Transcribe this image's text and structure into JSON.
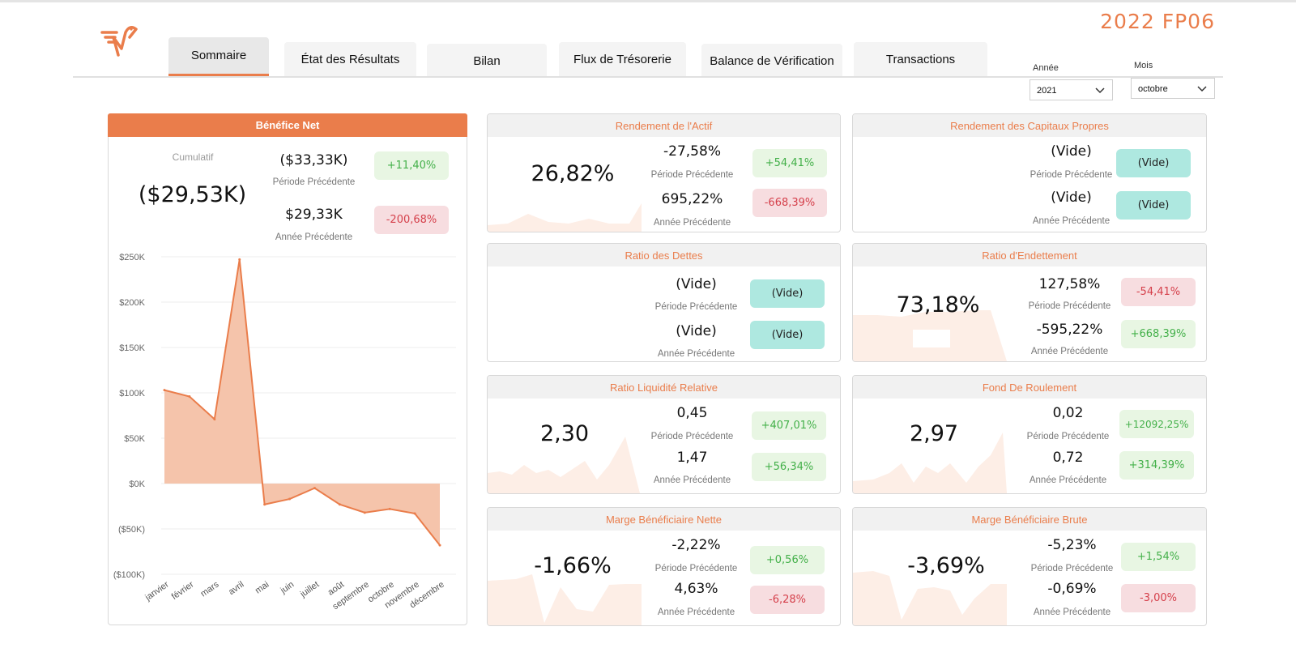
{
  "header": {
    "title": "2022 FP06",
    "tabs": [
      {
        "label": "Sommaire"
      },
      {
        "label": "État des Résultats"
      },
      {
        "label": "Bilan"
      },
      {
        "label": "Flux de Trésorerie"
      },
      {
        "label": "Balance de Vérification"
      },
      {
        "label": "Transactions"
      }
    ],
    "filters": {
      "year_label": "Année",
      "year_value": "2021",
      "month_label": "Mois",
      "month_value": "octobre"
    }
  },
  "net_profit": {
    "title": "Bénéfice Net",
    "cumulative_label": "Cumulatif",
    "value": "($29,53K)",
    "prev_period_value": "($33,33K)",
    "prev_period_label": "Période Précédente",
    "prev_period_change": "+11,40%",
    "prev_year_value": "$29,33K",
    "prev_year_label": "Année Précédente",
    "prev_year_change": "-200,68%"
  },
  "chart_data": {
    "type": "area",
    "title": "",
    "xlabel": "",
    "ylabel": "",
    "categories": [
      "janvier",
      "février",
      "mars",
      "avril",
      "mai",
      "juin",
      "juillet",
      "août",
      "septembre",
      "octobre",
      "novembre",
      "décembre"
    ],
    "values": [
      103,
      96,
      71,
      247,
      -23,
      -17,
      -5,
      -23,
      -32,
      -28,
      -33,
      -68
    ],
    "ylim": [
      -100,
      250
    ],
    "yticks": [
      {
        "value": 250,
        "label": "$250K"
      },
      {
        "value": 200,
        "label": "$200K"
      },
      {
        "value": 150,
        "label": "$150K"
      },
      {
        "value": 100,
        "label": "$100K"
      },
      {
        "value": 50,
        "label": "$50K"
      },
      {
        "value": 0,
        "label": "$0K"
      },
      {
        "value": -50,
        "label": "($50K)"
      },
      {
        "value": -100,
        "label": "($100K)"
      }
    ],
    "grid": true,
    "color": "#ea7d4b",
    "fill_color": "#f5c4ab"
  },
  "kpis": {
    "roa": {
      "title": "Rendement de l'Actif",
      "value": "26,82%",
      "prev_value": "-27,58%",
      "prev_label": "Période Précédente",
      "prev_change": "+54,41%",
      "year_value": "695,22%",
      "year_label": "Année Précédente",
      "year_change": "-668,39%"
    },
    "roe": {
      "title": "Rendement des Capitaux Propres",
      "value": "",
      "prev_value": "(Vide)",
      "prev_label": "Période Précédente",
      "prev_change": "(Vide)",
      "year_value": "(Vide)",
      "year_label": "Année Précédente",
      "year_change": "(Vide)"
    },
    "debt": {
      "title": "Ratio des Dettes",
      "value": "",
      "prev_value": "(Vide)",
      "prev_label": "Période Précédente",
      "prev_change": "(Vide)",
      "year_value": "(Vide)",
      "year_label": "Année Précédente",
      "year_change": "(Vide)"
    },
    "leverage": {
      "title": "Ratio d'Endettement",
      "value": "73,18%",
      "prev_value": "127,58%",
      "prev_label": "Période Précédente",
      "prev_change": "-54,41%",
      "year_value": "-595,22%",
      "year_label": "Année Précédente",
      "year_change": "+668,39%"
    },
    "quick": {
      "title": "Ratio Liquidité Relative",
      "value": "2,30",
      "prev_value": "0,45",
      "prev_label": "Période Précédente",
      "prev_change": "+407,01%",
      "year_value": "1,47",
      "year_label": "Année Précédente",
      "year_change": "+56,34%"
    },
    "working": {
      "title": "Fond De Roulement",
      "value": "2,97",
      "prev_value": "0,02",
      "prev_label": "Période Précédente",
      "prev_change": "+12092,25%",
      "year_value": "0,72",
      "year_label": "Année Précédente",
      "year_change": "+314,39%"
    },
    "net_margin": {
      "title": "Marge Bénéficiaire Nette",
      "value": "-1,66%",
      "prev_value": "-2,22%",
      "prev_label": "Période Précédente",
      "prev_change": "+0,56%",
      "year_value": "4,63%",
      "year_label": "Année Précédente",
      "year_change": "-6,28%"
    },
    "gross_margin": {
      "title": "Marge Bénéficiaire Brute",
      "value": "-3,69%",
      "prev_value": "-5,23%",
      "prev_label": "Période Précédente",
      "prev_change": "+1,54%",
      "year_value": "-0,69%",
      "year_label": "Année Précédente",
      "year_change": "-3,00%"
    }
  }
}
